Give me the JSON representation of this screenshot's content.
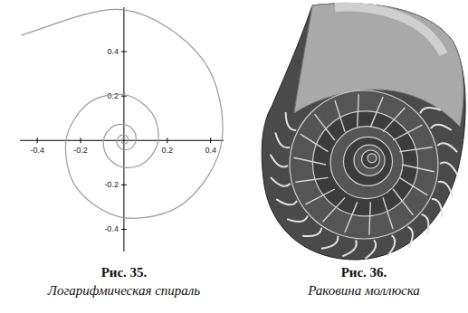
{
  "chart_data": {
    "type": "line",
    "x": [
      -0.474,
      0,
      0.364,
      0.452,
      0.28,
      0,
      -0.216,
      -0.267,
      -0.166,
      0,
      0.127,
      0.158,
      0.098,
      0,
      -0.075,
      -0.094,
      -0.058,
      0,
      0.045,
      0.055,
      0.034,
      0,
      -0.026,
      -0.033,
      -0.02,
      0,
      0.016,
      0.019,
      0.012,
      0,
      -0.009,
      -0.011,
      -0.007,
      0
    ],
    "values": [
      0.474,
      0.588,
      0.364,
      0,
      -0.28,
      -0.348,
      -0.216,
      0,
      0.166,
      0.206,
      0.127,
      0,
      -0.098,
      -0.122,
      -0.075,
      0,
      0.058,
      0.072,
      0.045,
      0,
      -0.034,
      -0.042,
      -0.026,
      0,
      0.02,
      0.025,
      0.016,
      0,
      -0.012,
      -0.015,
      -0.009,
      0,
      0.007,
      0.009
    ],
    "color": "#9a9a9a",
    "xlim": [
      -0.48,
      0.46
    ],
    "ylim": [
      -0.5,
      0.6
    ],
    "xticks": [
      -0.4,
      -0.2,
      0.2,
      0.4
    ],
    "yticks": [
      -0.4,
      -0.2,
      0.2,
      0.4
    ],
    "grid": false
  },
  "figure_captions": [
    {
      "number": "Рис. 35.",
      "title": "Логарифмическая спираль"
    },
    {
      "number": "Рис. 36.",
      "title": "Раковина моллюска"
    }
  ]
}
